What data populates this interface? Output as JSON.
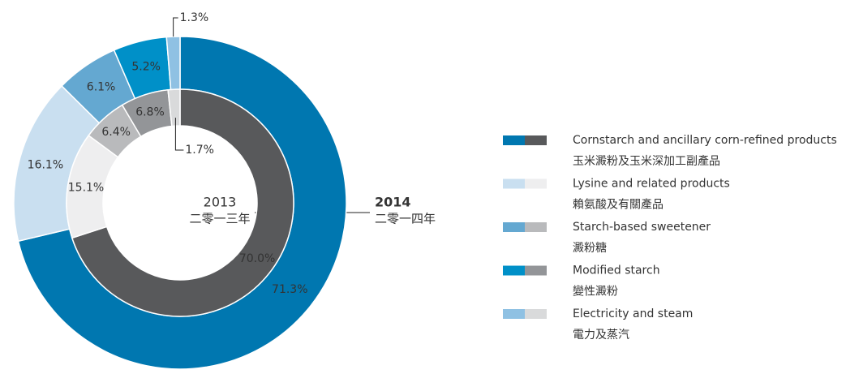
{
  "chart_data": {
    "type": "donut",
    "categories": [
      "Cornstarch and ancillary corn-refined products",
      "Lysine and related products",
      "Starch-based sweetener",
      "Modified starch",
      "Electricity and steam"
    ],
    "categories_zh": [
      "玉米澱粉及玉米深加工副產品",
      "賴氨酸及有關產品",
      "澱粉糖",
      "變性澱粉",
      "電力及蒸汽"
    ],
    "series": [
      {
        "name": "2014",
        "subtitle": "二零一四年",
        "colors": [
          "#0077b0",
          "#c9dff0",
          "#64a8d1",
          "#0090c8",
          "#8fc1e3"
        ],
        "values": [
          71.3,
          16.1,
          6.1,
          5.2,
          1.3
        ],
        "value_labels": [
          "71.3%",
          "16.1%",
          "6.1%",
          "5.2%",
          "1.3%"
        ]
      },
      {
        "name": "2013",
        "subtitle": "二零一三年",
        "colors": [
          "#58595b",
          "#eeeeef",
          "#b9babc",
          "#939598",
          "#d9dadb"
        ],
        "values": [
          70.0,
          15.1,
          6.4,
          6.8,
          1.7
        ],
        "value_labels": [
          "70.0%",
          "15.1%",
          "6.4%",
          "6.8%",
          "1.7%"
        ]
      }
    ]
  }
}
